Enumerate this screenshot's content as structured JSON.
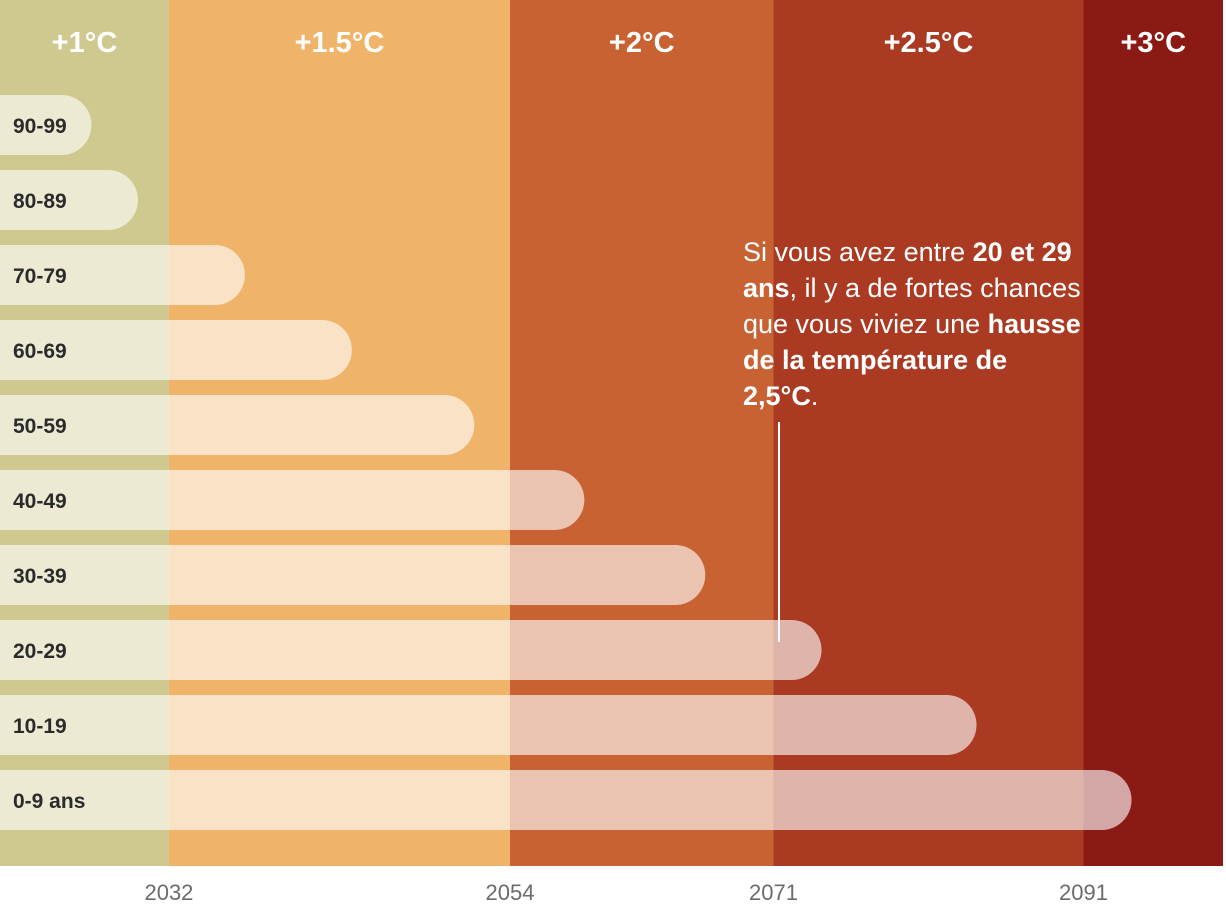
{
  "chart_data": {
    "type": "bar",
    "orientation": "horizontal",
    "title": "",
    "xlabel": "",
    "ylabel": "",
    "categories": [
      "90-99",
      "80-89",
      "70-79",
      "60-69",
      "50-59",
      "40-49",
      "30-39",
      "20-29",
      "10-19",
      "0-9 ans"
    ],
    "values": [
      2027,
      2030,
      2036.9,
      2043.8,
      2051.7,
      2058.8,
      2066.6,
      2074.1,
      2084.1,
      2094.1
    ],
    "xlim": [
      2021.1,
      2100
    ],
    "x_ticks": [
      "2032",
      "2054",
      "2071",
      "2091"
    ],
    "bands": [
      {
        "label": "+1°C",
        "start": 2021.1,
        "end": 2032,
        "color": "#cfc98f"
      },
      {
        "label": "+1.5°C",
        "start": 2032,
        "end": 2054,
        "color": "#f0b36a"
      },
      {
        "label": "+2°C",
        "start": 2054,
        "end": 2071,
        "color": "#c86232"
      },
      {
        "label": "+2.5°C",
        "start": 2071,
        "end": 2091,
        "color": "#ab3a22"
      },
      {
        "label": "+3°C",
        "start": 2091,
        "end": 2100,
        "color": "#8c1a14"
      }
    ],
    "annotation": {
      "target_category": "20-29",
      "parts": [
        {
          "text": "Si vous avez entre ",
          "bold": false
        },
        {
          "text": "20 et 29 ans",
          "bold": true
        },
        {
          "text": ", il y a de fortes chances que vous viviez une ",
          "bold": false
        },
        {
          "text": "hausse de la température de 2,5°C",
          "bold": true
        },
        {
          "text": ".",
          "bold": false
        }
      ]
    },
    "grid": false
  }
}
